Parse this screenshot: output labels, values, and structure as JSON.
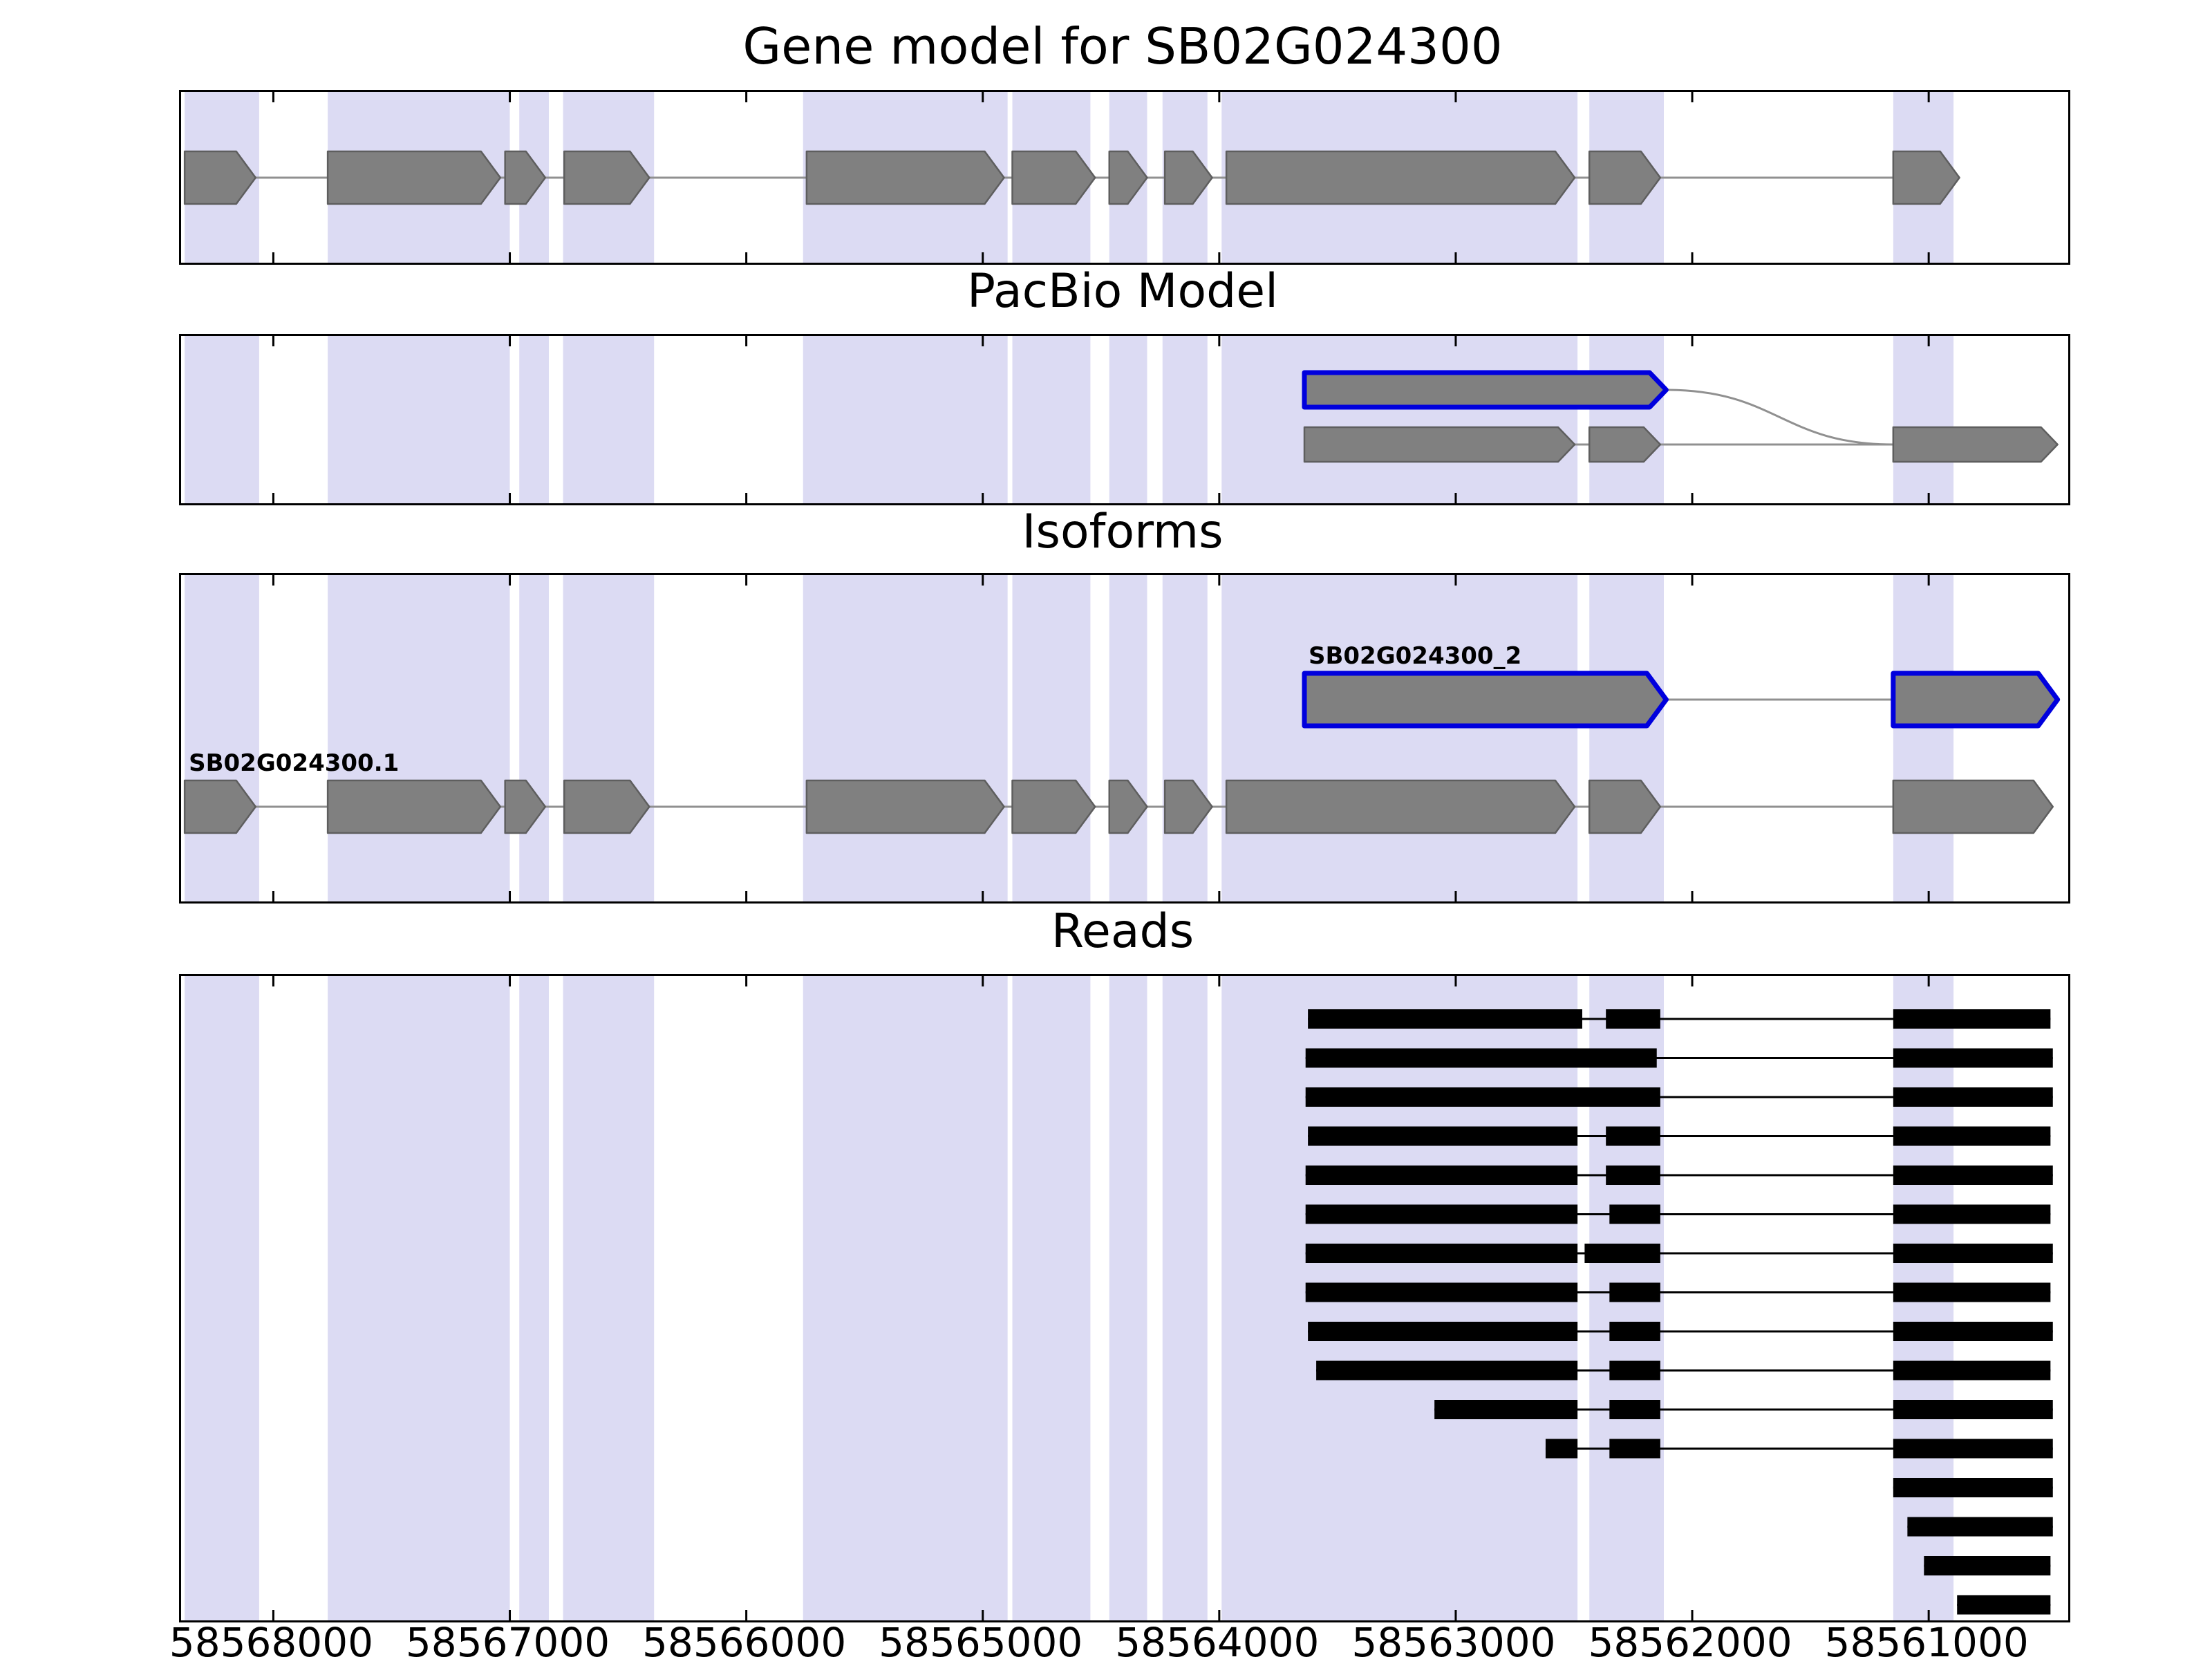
{
  "colors": {
    "band": "#dcdbf3",
    "exon_fill": "#808080",
    "exon_stroke": "#5e5e5e",
    "intron_line": "#909090",
    "highlight_outline": "#0000dd",
    "read": "#000000",
    "panel_border": "#000000",
    "tick": "#000000"
  },
  "chart_data": {
    "type": "genomic-tracks",
    "title": "Gene model for SB02G024300",
    "axis": {
      "left_bp": 58568390,
      "right_bp": 58560410,
      "reversed": true,
      "ticks": [
        58568000,
        58567000,
        58566000,
        58565000,
        58564000,
        58563000,
        58562000,
        58561000
      ],
      "tick_labels": [
        "58568000",
        "58567000",
        "58566000",
        "58565000",
        "58564000",
        "58563000",
        "58562000",
        "58561000"
      ]
    },
    "highlight_bands": [
      [
        58568375,
        58568060
      ],
      [
        58567770,
        58567000
      ],
      [
        58566960,
        58566835
      ],
      [
        58566775,
        58566390
      ],
      [
        58565760,
        58564895
      ],
      [
        58564875,
        58564545
      ],
      [
        58564465,
        58564305
      ],
      [
        58564240,
        58564050
      ],
      [
        58563990,
        58562485
      ],
      [
        58562435,
        58562120
      ],
      [
        58561150,
        58560895
      ]
    ],
    "panels": {
      "gene_model": {
        "title": "Gene model for SB02G024300",
        "transcripts": [
          {
            "label": null,
            "outline": null,
            "exons": [
              [
                58568375,
                58568075
              ],
              [
                58567770,
                58567040
              ],
              [
                58567020,
                58566850
              ],
              [
                58566770,
                58566410
              ],
              [
                58565745,
                58564910
              ],
              [
                58564875,
                58564525
              ],
              [
                58564465,
                58564305
              ],
              [
                58564230,
                58564030
              ],
              [
                58563970,
                58562497
              ],
              [
                58562435,
                58562135
              ],
              [
                58561150,
                58560870
              ]
            ]
          }
        ]
      },
      "pacbio": {
        "title": "PacBio Model",
        "transcripts": [
          {
            "label": null,
            "outline": "blue",
            "exons": [
              [
                58563640,
                58562110
              ]
            ]
          },
          {
            "label": null,
            "outline": null,
            "exons": [
              [
                58563640,
                58562497
              ],
              [
                58562435,
                58562135
              ],
              [
                58561150,
                58560455
              ]
            ]
          }
        ],
        "splice_curve": {
          "from_bp": 58562110,
          "to_bp": 58561150
        }
      },
      "isoforms": {
        "title": "Isoforms",
        "transcripts": [
          {
            "label": "SB02G024300_2",
            "outline": "blue",
            "exons": [
              [
                58563640,
                58562110
              ],
              [
                58561150,
                58560455
              ]
            ]
          },
          {
            "label": "SB02G024300.1",
            "outline": null,
            "exons": [
              [
                58568375,
                58568075
              ],
              [
                58567770,
                58567040
              ],
              [
                58567020,
                58566850
              ],
              [
                58566770,
                58566410
              ],
              [
                58565745,
                58564910
              ],
              [
                58564875,
                58564525
              ],
              [
                58564465,
                58564305
              ],
              [
                58564230,
                58564030
              ],
              [
                58563970,
                58562497
              ],
              [
                58562435,
                58562135
              ],
              [
                58561150,
                58560475
              ]
            ]
          }
        ]
      },
      "reads": {
        "title": "Reads",
        "reads": [
          [
            [
              58563625,
              58562465
            ],
            [
              58562365,
              58562135
            ],
            [
              58561150,
              58560485
            ]
          ],
          [
            [
              58563635,
              58562150
            ],
            [
              58561150,
              58560475
            ]
          ],
          [
            [
              58563635,
              58562135
            ],
            [
              58561150,
              58560475
            ]
          ],
          [
            [
              58563625,
              58562485
            ],
            [
              58562365,
              58562135
            ],
            [
              58561150,
              58560485
            ]
          ],
          [
            [
              58563635,
              58562485
            ],
            [
              58562365,
              58562135
            ],
            [
              58561150,
              58560475
            ]
          ],
          [
            [
              58563635,
              58562485
            ],
            [
              58562350,
              58562135
            ],
            [
              58561150,
              58560485
            ]
          ],
          [
            [
              58563635,
              58562485
            ],
            [
              58562455,
              58562135
            ],
            [
              58561150,
              58560475
            ]
          ],
          [
            [
              58563635,
              58562485
            ],
            [
              58562350,
              58562135
            ],
            [
              58561150,
              58560485
            ]
          ],
          [
            [
              58563625,
              58562485
            ],
            [
              58562350,
              58562135
            ],
            [
              58561150,
              58560475
            ]
          ],
          [
            [
              58563590,
              58562485
            ],
            [
              58562350,
              58562135
            ],
            [
              58561150,
              58560485
            ]
          ],
          [
            [
              58563090,
              58562485
            ],
            [
              58562350,
              58562135
            ],
            [
              58561150,
              58560475
            ]
          ],
          [
            [
              58562620,
              58562485
            ],
            [
              58562350,
              58562135
            ],
            [
              58561150,
              58560475
            ]
          ],
          [
            [
              58561150,
              58560475
            ]
          ],
          [
            [
              58561090,
              58560475
            ]
          ],
          [
            [
              58561020,
              58560485
            ]
          ],
          [
            [
              58560880,
              58560485
            ]
          ]
        ]
      }
    }
  }
}
